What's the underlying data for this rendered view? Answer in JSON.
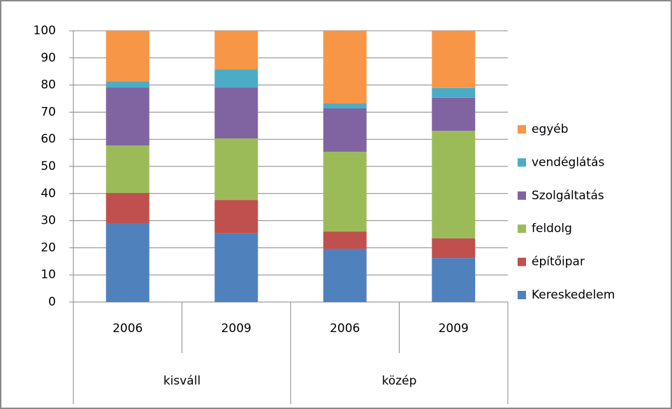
{
  "chart_data": {
    "type": "stacked_bar",
    "categories": [
      "2006",
      "2009",
      "2006",
      "2009"
    ],
    "groups": [
      "kisváll",
      "közép"
    ],
    "series": [
      {
        "name": "Kereskedelem",
        "color": "#4f81bd",
        "values": [
          29,
          25.3,
          19.6,
          16.2
        ]
      },
      {
        "name": "építőipar",
        "color": "#c0504d",
        "values": [
          11.2,
          12.3,
          6.4,
          7.3
        ]
      },
      {
        "name": "feldolg",
        "color": "#9bbb59",
        "values": [
          17.5,
          22.7,
          29.4,
          39.6
        ]
      },
      {
        "name": "Szolgáltatás",
        "color": "#8064a2",
        "values": [
          21.4,
          18.8,
          16,
          12.2
        ]
      },
      {
        "name": "vendéglátás",
        "color": "#4bacc6",
        "values": [
          2.3,
          6.7,
          1.8,
          3.6
        ]
      },
      {
        "name": "egyéb",
        "color": "#f79646",
        "values": [
          18.6,
          14.2,
          26.8,
          21.1
        ]
      }
    ],
    "ylim": [
      0,
      100
    ],
    "yticks": [
      0,
      10,
      20,
      30,
      40,
      50,
      60,
      70,
      80,
      90,
      100
    ],
    "grid": true,
    "legend": "right"
  }
}
